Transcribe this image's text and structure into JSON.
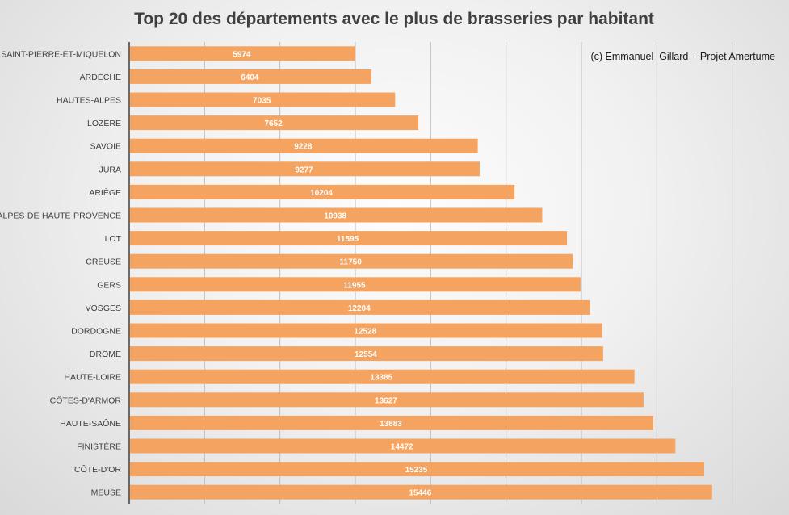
{
  "chart_data": {
    "type": "bar",
    "orientation": "horizontal",
    "title": "Top 20 des départements avec le plus de brasseries par habitant",
    "annotation": "(c) Emmanuel  Gillard  - Projet Amertume",
    "categories": [
      "SAINT-PIERRE-ET-MIQUELON",
      "ARDÈCHE",
      "HAUTES-ALPES",
      "LOZÈRE",
      "SAVOIE",
      "JURA",
      "ARIÈGE",
      "ALPES-DE-HAUTE-PROVENCE",
      "LOT",
      "CREUSE",
      "GERS",
      "VOSGES",
      "DORDOGNE",
      "DRÔME",
      "HAUTE-LOIRE",
      "CÔTES-D'ARMOR",
      "HAUTE-SAÔNE",
      "FINISTÈRE",
      "CÔTE-D'OR",
      "MEUSE"
    ],
    "values": [
      5974,
      6404,
      7035,
      7652,
      9228,
      9277,
      10204,
      10938,
      11595,
      11750,
      11955,
      12204,
      12528,
      12554,
      13385,
      13627,
      13883,
      14472,
      15235,
      15446
    ],
    "xlim": [
      0,
      18000
    ],
    "grid": true,
    "bar_color": "#F4A460",
    "label_color": "#ffffff"
  }
}
